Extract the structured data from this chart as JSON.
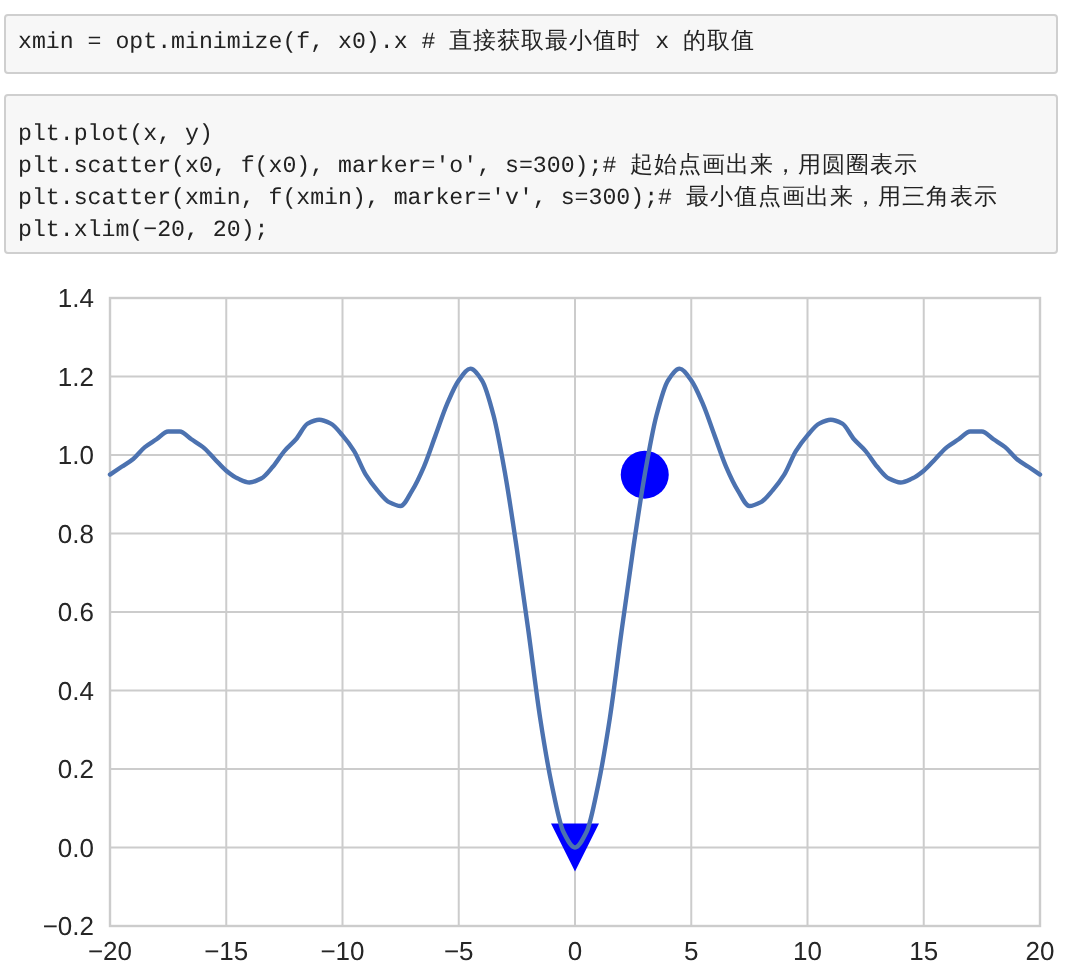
{
  "chart_data": {
    "type": "line",
    "annotations": [
      "xmin = opt.minimize(f, x0).x # 直接获取最小值时 x 的取值",
      "plt.plot(x, y)\nplt.scatter(x0, f(x0), marker='o', s=300);# 起始点画出来，用圆圈表示\nplt.scatter(xmin, f(xmin), marker='v', s=300);# 最小值点画出来，用三角表示\nplt.xlim(−20, 20);"
    ],
    "xlim": [
      -20,
      20
    ],
    "xticks": [
      {
        "value": -20,
        "label": "−20"
      },
      {
        "value": -15,
        "label": "−15"
      },
      {
        "value": -10,
        "label": "−10"
      },
      {
        "value": -5,
        "label": "−5"
      },
      0,
      5,
      10,
      15,
      20
    ],
    "ylim": [
      -0.2,
      1.4
    ],
    "yticks": [
      {
        "value": -0.2,
        "label": "−0.2"
      },
      {
        "value": 0,
        "label": "0.0"
      },
      0.2,
      0.4,
      0.6,
      0.8,
      {
        "value": 1,
        "label": "1.0"
      },
      1.2,
      1.4
    ],
    "grid": true,
    "series": [
      {
        "color": "#4c72b0",
        "marker": "none",
        "line_style": "solid",
        "x": [
          -20,
          -19.5,
          -19,
          -18.5,
          -18,
          -17.5,
          -17,
          -16.5,
          -16,
          -15.5,
          -15,
          -14.5,
          -14,
          -13.5,
          -13,
          -12.5,
          -12,
          -11.5,
          -11,
          -10.5,
          -10,
          -9.5,
          -9,
          -8.5,
          -8,
          -7.5,
          -7,
          -6.5,
          -6,
          -5.5,
          -5,
          -4.5,
          -4,
          -3.5,
          -3,
          -2.5,
          -2,
          -1.5,
          -1,
          -0.5,
          0,
          0.5,
          1,
          1.5,
          2,
          2.5,
          3,
          3.5,
          4,
          4.5,
          5,
          5.5,
          6,
          6.5,
          7,
          7.5,
          8,
          8.5,
          9,
          9.5,
          10,
          10.5,
          11,
          11.5,
          12,
          12.5,
          13,
          13.5,
          14,
          14.5,
          15,
          15.5,
          16,
          16.5,
          17,
          17.5,
          18,
          18.5,
          19,
          19.5,
          20
        ],
        "values": [
          0.95,
          0.97,
          0.99,
          1.02,
          1.04,
          1.06,
          1.06,
          1.04,
          1.02,
          0.99,
          0.96,
          0.94,
          0.93,
          0.94,
          0.97,
          1.01,
          1.04,
          1.08,
          1.09,
          1.08,
          1.05,
          1.01,
          0.95,
          0.91,
          0.88,
          0.87,
          0.91,
          0.97,
          1.05,
          1.13,
          1.19,
          1.22,
          1.19,
          1.1,
          0.95,
          0.76,
          0.55,
          0.33,
          0.16,
          0.04,
          0,
          0.04,
          0.16,
          0.33,
          0.55,
          0.76,
          0.95,
          1.1,
          1.19,
          1.22,
          1.19,
          1.13,
          1.05,
          0.97,
          0.91,
          0.87,
          0.88,
          0.91,
          0.95,
          1.01,
          1.05,
          1.08,
          1.09,
          1.08,
          1.04,
          1.01,
          0.97,
          0.94,
          0.93,
          0.94,
          0.96,
          0.99,
          1.02,
          1.04,
          1.06,
          1.06,
          1.04,
          1.02,
          0.99,
          0.97,
          0.95
        ]
      },
      {
        "type": "scatter",
        "color": "#0000ff",
        "marker": "circle",
        "x": [
          3
        ],
        "values": [
          0.95
        ]
      },
      {
        "type": "scatter",
        "color": "#0000ff",
        "marker": "triangle",
        "x": [
          0
        ],
        "values": [
          0
        ]
      }
    ]
  }
}
